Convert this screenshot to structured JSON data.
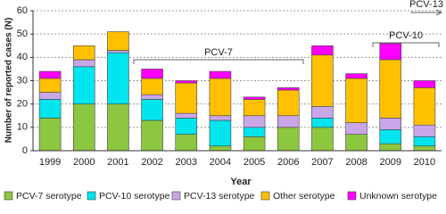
{
  "chart_data": {
    "type": "stacked-bar",
    "x_label": "Year",
    "y_label": "Number of reported cases (N)",
    "categories": [
      "1999",
      "2000",
      "2001",
      "2002",
      "2003",
      "2004",
      "2005",
      "2006",
      "2007",
      "2008",
      "2009",
      "2010"
    ],
    "series": [
      {
        "name": "PCV-7 serotype",
        "color": "#8dc63f",
        "values": [
          14,
          20,
          20,
          13,
          7,
          2,
          6,
          10,
          10,
          7,
          3,
          2
        ]
      },
      {
        "name": "PCV-10 serotype",
        "color": "#00e5ee",
        "values": [
          8,
          16,
          22,
          9,
          7,
          11,
          4,
          0,
          4,
          0,
          6,
          4
        ]
      },
      {
        "name": "PCV-13 serotype",
        "color": "#c9a6e8",
        "values": [
          3,
          3,
          1,
          2,
          2,
          2,
          5,
          5,
          5,
          5,
          5,
          5
        ]
      },
      {
        "name": "Other serotype",
        "color": "#ffc000",
        "values": [
          6,
          6,
          8,
          7,
          13,
          16,
          7,
          11,
          22,
          19,
          25,
          16
        ]
      },
      {
        "name": "Unknown serotype",
        "color": "#ff00ff",
        "values": [
          3,
          0,
          0,
          4,
          1,
          3,
          1,
          1,
          4,
          2,
          7,
          3
        ]
      }
    ],
    "ylim": [
      0,
      60
    ],
    "yticks": [
      0,
      10,
      20,
      30,
      40,
      50,
      60
    ],
    "grid": true,
    "legend": "bottom",
    "annotations": [
      "PCV-7",
      "PCV-10",
      "PCV-13"
    ]
  }
}
